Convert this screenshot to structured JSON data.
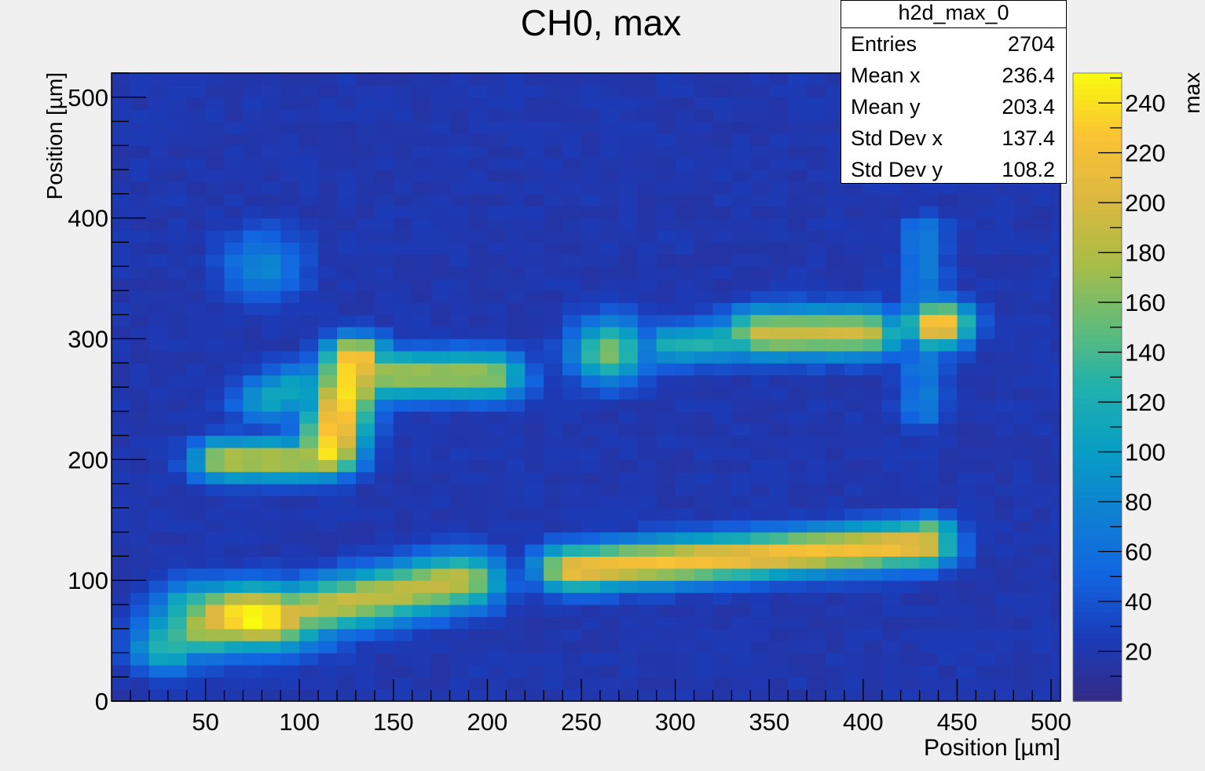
{
  "chart_data": {
    "type": "heatmap",
    "title": "CH0, max",
    "xlabel": "Position [µm]",
    "ylabel": "Position [µm]",
    "zlabel": "max",
    "xlim": [
      0,
      505
    ],
    "ylim": [
      0,
      520
    ],
    "bin_size": 10,
    "x_ticks": [
      50,
      100,
      150,
      200,
      250,
      300,
      350,
      400,
      450,
      500
    ],
    "y_ticks": [
      0,
      100,
      200,
      300,
      400,
      500
    ],
    "z_ticks": [
      20,
      40,
      60,
      80,
      100,
      120,
      140,
      160,
      180,
      200,
      220,
      240
    ],
    "zlim": [
      0,
      252
    ],
    "colormap": "parula",
    "background_level": 20,
    "hotspots": [
      {
        "x": [
          20,
          230
        ],
        "y": [
          20,
          120
        ],
        "peak": 240,
        "region": "lower-left bar"
      },
      {
        "x": [
          230,
          440
        ],
        "y": [
          100,
          150
        ],
        "peak": 215,
        "region": "lower-right bar"
      },
      {
        "x": [
          50,
          210
        ],
        "y": [
          180,
          300
        ],
        "peak": 225,
        "region": "middle-left feature"
      },
      {
        "x": [
          240,
          450
        ],
        "y": [
          270,
          340
        ],
        "peak": 232,
        "region": "upper-right bar"
      },
      {
        "x": [
          60,
          110
        ],
        "y": [
          330,
          390
        ],
        "peak": 70,
        "region": "upper-left blob"
      },
      {
        "x": [
          420,
          450
        ],
        "y": [
          230,
          400
        ],
        "peak": 65,
        "region": "right column"
      }
    ]
  },
  "stats_box": {
    "name": "h2d_max_0",
    "rows": [
      {
        "label": "Entries",
        "value": "2704"
      },
      {
        "label": "Mean x",
        "value": "236.4"
      },
      {
        "label": "Mean y",
        "value": "203.4"
      },
      {
        "label": "Std Dev x",
        "value": "137.4"
      },
      {
        "label": "Std Dev y",
        "value": "108.2"
      }
    ]
  }
}
